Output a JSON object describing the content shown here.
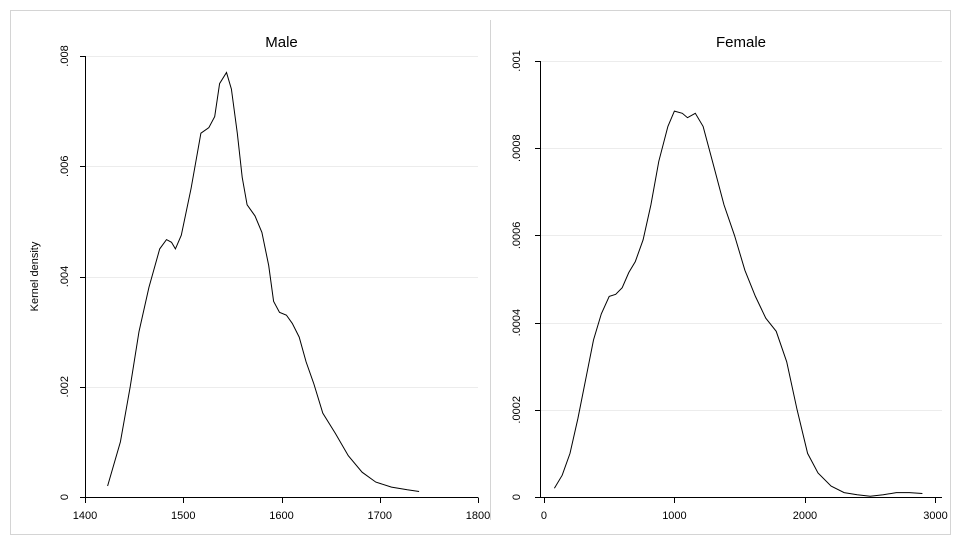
{
  "chart_data": [
    {
      "type": "line",
      "title": "Male",
      "xlabel": "",
      "ylabel": "Kernel density",
      "xlim": [
        1400,
        1800
      ],
      "ylim": [
        0,
        0.008
      ],
      "xticks": [
        1400,
        1500,
        1600,
        1700,
        1800
      ],
      "xtick_labels": [
        "1400",
        "1500",
        "1600",
        "1700",
        "1800"
      ],
      "yticks": [
        0,
        0.002,
        0.004,
        0.006,
        0.008
      ],
      "ytick_labels": [
        "0",
        ".002",
        ".004",
        ".006",
        ".008"
      ],
      "grid": true,
      "series": [
        {
          "x": [
            1423,
            1436,
            1446,
            1455,
            1465,
            1476,
            1483,
            1488,
            1492,
            1498,
            1508,
            1518,
            1526,
            1532,
            1537,
            1544,
            1549,
            1555,
            1560,
            1565,
            1573,
            1580,
            1587,
            1592,
            1598,
            1605,
            1611,
            1618,
            1625,
            1633,
            1642,
            1655,
            1668,
            1682,
            1696,
            1712,
            1728,
            1740
          ],
          "y": [
            0.0002,
            0.001,
            0.002,
            0.003,
            0.0038,
            0.0045,
            0.00467,
            0.00462,
            0.0045,
            0.00475,
            0.0056,
            0.0066,
            0.0067,
            0.0069,
            0.0075,
            0.0077,
            0.0074,
            0.0066,
            0.0058,
            0.0053,
            0.0051,
            0.0048,
            0.0042,
            0.00355,
            0.00335,
            0.0033,
            0.00315,
            0.0029,
            0.00245,
            0.00205,
            0.00152,
            0.00115,
            0.00075,
            0.00045,
            0.00027,
            0.00018,
            0.00013,
            0.0001
          ]
        }
      ]
    },
    {
      "type": "line",
      "title": "Female",
      "xlabel": "",
      "ylabel": "",
      "xlim": [
        -30,
        3050
      ],
      "ylim": [
        0,
        0.001
      ],
      "xticks": [
        0,
        1000,
        2000,
        3000
      ],
      "xtick_labels": [
        "0",
        "1000",
        "2000",
        "3000"
      ],
      "yticks": [
        0,
        0.0002,
        0.0004,
        0.0006,
        0.0008,
        0.001
      ],
      "ytick_labels": [
        "0",
        ".0002",
        ".0004",
        ".0006",
        ".0008",
        ".001"
      ],
      "grid": true,
      "series": [
        {
          "x": [
            80,
            140,
            200,
            260,
            320,
            380,
            440,
            500,
            550,
            600,
            650,
            700,
            760,
            820,
            880,
            950,
            1000,
            1060,
            1100,
            1160,
            1220,
            1300,
            1380,
            1460,
            1540,
            1620,
            1700,
            1780,
            1860,
            1940,
            2020,
            2100,
            2200,
            2300,
            2400,
            2500,
            2600,
            2700,
            2800,
            2900
          ],
          "y": [
            2e-05,
            5e-05,
            0.0001,
            0.00018,
            0.00027,
            0.00036,
            0.00042,
            0.00046,
            0.000465,
            0.00048,
            0.000515,
            0.00054,
            0.00059,
            0.00067,
            0.00077,
            0.00085,
            0.000885,
            0.00088,
            0.00087,
            0.00088,
            0.00085,
            0.00076,
            0.00067,
            0.0006,
            0.00052,
            0.00046,
            0.00041,
            0.00038,
            0.00031,
            0.0002,
            0.0001,
            5.5e-05,
            2.5e-05,
            1e-05,
            5e-06,
            1.5e-06,
            5e-06,
            1e-05,
            1e-05,
            8e-06
          ]
        }
      ]
    }
  ]
}
